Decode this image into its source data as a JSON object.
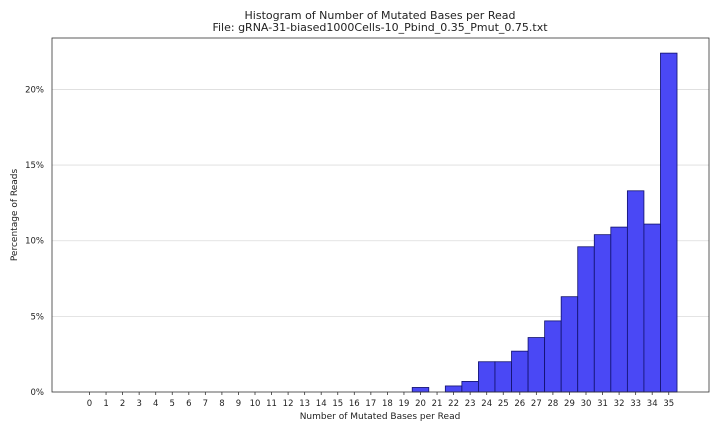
{
  "chart_data": {
    "type": "bar",
    "title": "Histogram of Number of Mutated Bases per Read",
    "subtitle": "File: gRNA-31-biased1000Cells-10_Pbind_0.35_Pmut_0.75.txt",
    "xlabel": "Number of Mutated Bases per Read",
    "ylabel": "Percentage of Reads",
    "categories": [
      "0",
      "1",
      "2",
      "3",
      "4",
      "5",
      "6",
      "7",
      "8",
      "9",
      "10",
      "11",
      "12",
      "13",
      "14",
      "15",
      "16",
      "17",
      "18",
      "19",
      "20",
      "21",
      "22",
      "23",
      "24",
      "25",
      "26",
      "27",
      "28",
      "29",
      "30",
      "31",
      "32",
      "33",
      "34",
      "35"
    ],
    "values": [
      0,
      0,
      0,
      0,
      0,
      0,
      0,
      0,
      0,
      0,
      0,
      0,
      0,
      0,
      0,
      0,
      0,
      0,
      0,
      0,
      0.3,
      0,
      0.4,
      0.7,
      2.0,
      2.0,
      2.7,
      3.6,
      4.7,
      6.3,
      9.6,
      10.4,
      10.9,
      13.3,
      11.1,
      22.4
    ],
    "ylim": [
      0,
      23.4
    ],
    "yticks": [
      0,
      5,
      10,
      15,
      20
    ],
    "ytick_labels": [
      "0%",
      "5%",
      "10%",
      "15%",
      "20%"
    ],
    "grid": "horizontal",
    "bar_color": "#4a48f5",
    "edge_color": "#10106a"
  }
}
